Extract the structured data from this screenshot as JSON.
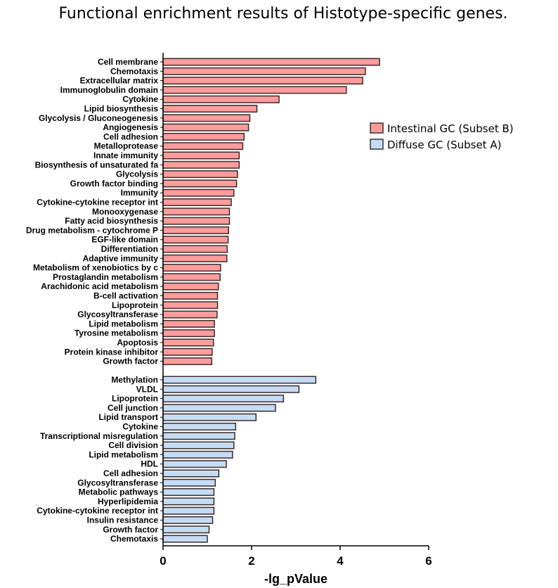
{
  "chart_data": {
    "type": "bar",
    "orientation": "horizontal",
    "title": "Functional enrichment results of Histotype-specific genes.",
    "xlabel": "-lg_pValue",
    "ylabel": "",
    "xlim": [
      0,
      6
    ],
    "xticks": [
      "0",
      "2",
      "4",
      "6"
    ],
    "grid": false,
    "legend_placement": "right",
    "series": [
      {
        "name": "Intestinal GC (Subset B)",
        "color": "#ff9c9c",
        "categories": [
          "Cell membrane",
          "Chemotaxis",
          "Extracellular matrix",
          "Immunoglobulin domain",
          "Cytokine",
          "Lipid biosynthesis",
          "Glycolysis / Gluconeogenesis",
          "Angiogenesis",
          "Cell adhesion",
          "Metalloprotease",
          "Innate immunity",
          "Biosynthesis of unsaturated fa",
          "Glycolysis",
          "Growth factor binding",
          "Immunity",
          "Cytokine-cytokine receptor int",
          "Monooxygenase",
          "Fatty acid biosynthesis",
          "Drug metabolism - cytochrome P",
          "EGF-like domain",
          "Differentiation",
          "Adaptive immunity",
          "Metabolism of xenobiotics by c",
          "Prostaglandin metabolism",
          "Arachidonic acid metabolism",
          "B-cell activation",
          "Lipoprotein",
          "Glycosyltransferase",
          "Lipid metabolism",
          "Tyrosine metabolism",
          "Apoptosis",
          "Protein kinase inhibitor",
          "Growth factor"
        ],
        "values": [
          4.89,
          4.57,
          4.51,
          4.14,
          2.62,
          2.12,
          1.96,
          1.93,
          1.83,
          1.8,
          1.72,
          1.72,
          1.68,
          1.66,
          1.6,
          1.54,
          1.5,
          1.5,
          1.48,
          1.47,
          1.45,
          1.44,
          1.3,
          1.29,
          1.25,
          1.23,
          1.23,
          1.22,
          1.16,
          1.16,
          1.14,
          1.11,
          1.1
        ]
      },
      {
        "name": "Diffuse GC (Subset A)",
        "color": "#c5dcf5",
        "categories": [
          "Methylation",
          "VLDL",
          "Lipoprotein",
          "Cell junction",
          "Lipid transport",
          "Cytokine",
          "Transcriptional misregulation",
          "Cell division",
          "Lipid metabolism",
          "HDL",
          "Cell adhesion",
          "Glycosyltransferase",
          "Metabolic pathways",
          "Hyperlipidemia",
          "Cytokine-cytokine receptor int",
          "Insulin resistance",
          "Growth factor",
          "Chemotaxis"
        ],
        "values": [
          3.45,
          3.07,
          2.72,
          2.54,
          2.1,
          1.64,
          1.62,
          1.6,
          1.57,
          1.43,
          1.26,
          1.18,
          1.15,
          1.15,
          1.15,
          1.12,
          1.04,
          1.0
        ]
      }
    ]
  }
}
